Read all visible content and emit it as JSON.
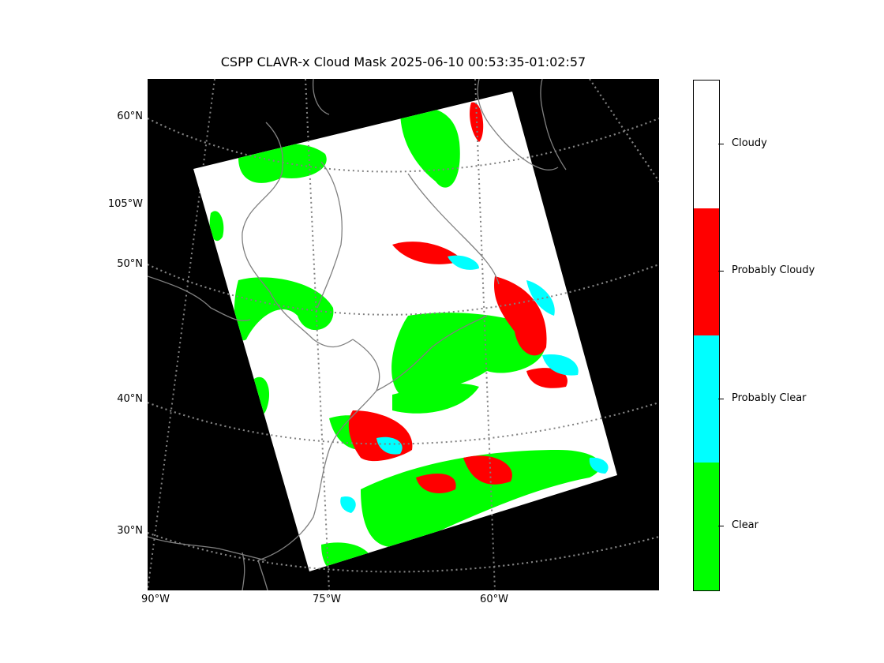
{
  "figure": {
    "title": "CSPP CLAVR-x Cloud Mask 2025-06-10 00:53:35-01:02:57"
  },
  "map": {
    "projection_note_colors": {
      "background": "#000000",
      "gridlines": "#808080",
      "coastlines": "#808080"
    },
    "lat_labels": [
      "60°N",
      "105°W",
      "50°N",
      "40°N",
      "30°N"
    ],
    "lon_labels": [
      "90°W",
      "75°W",
      "60°W"
    ]
  },
  "colorbar": {
    "categories": [
      {
        "label": "Cloudy",
        "color": "#ffffff"
      },
      {
        "label": "Probably Cloudy",
        "color": "#ff0000"
      },
      {
        "label": "Probably Clear",
        "color": "#00ffff"
      },
      {
        "label": "Clear",
        "color": "#00ff00"
      }
    ]
  }
}
